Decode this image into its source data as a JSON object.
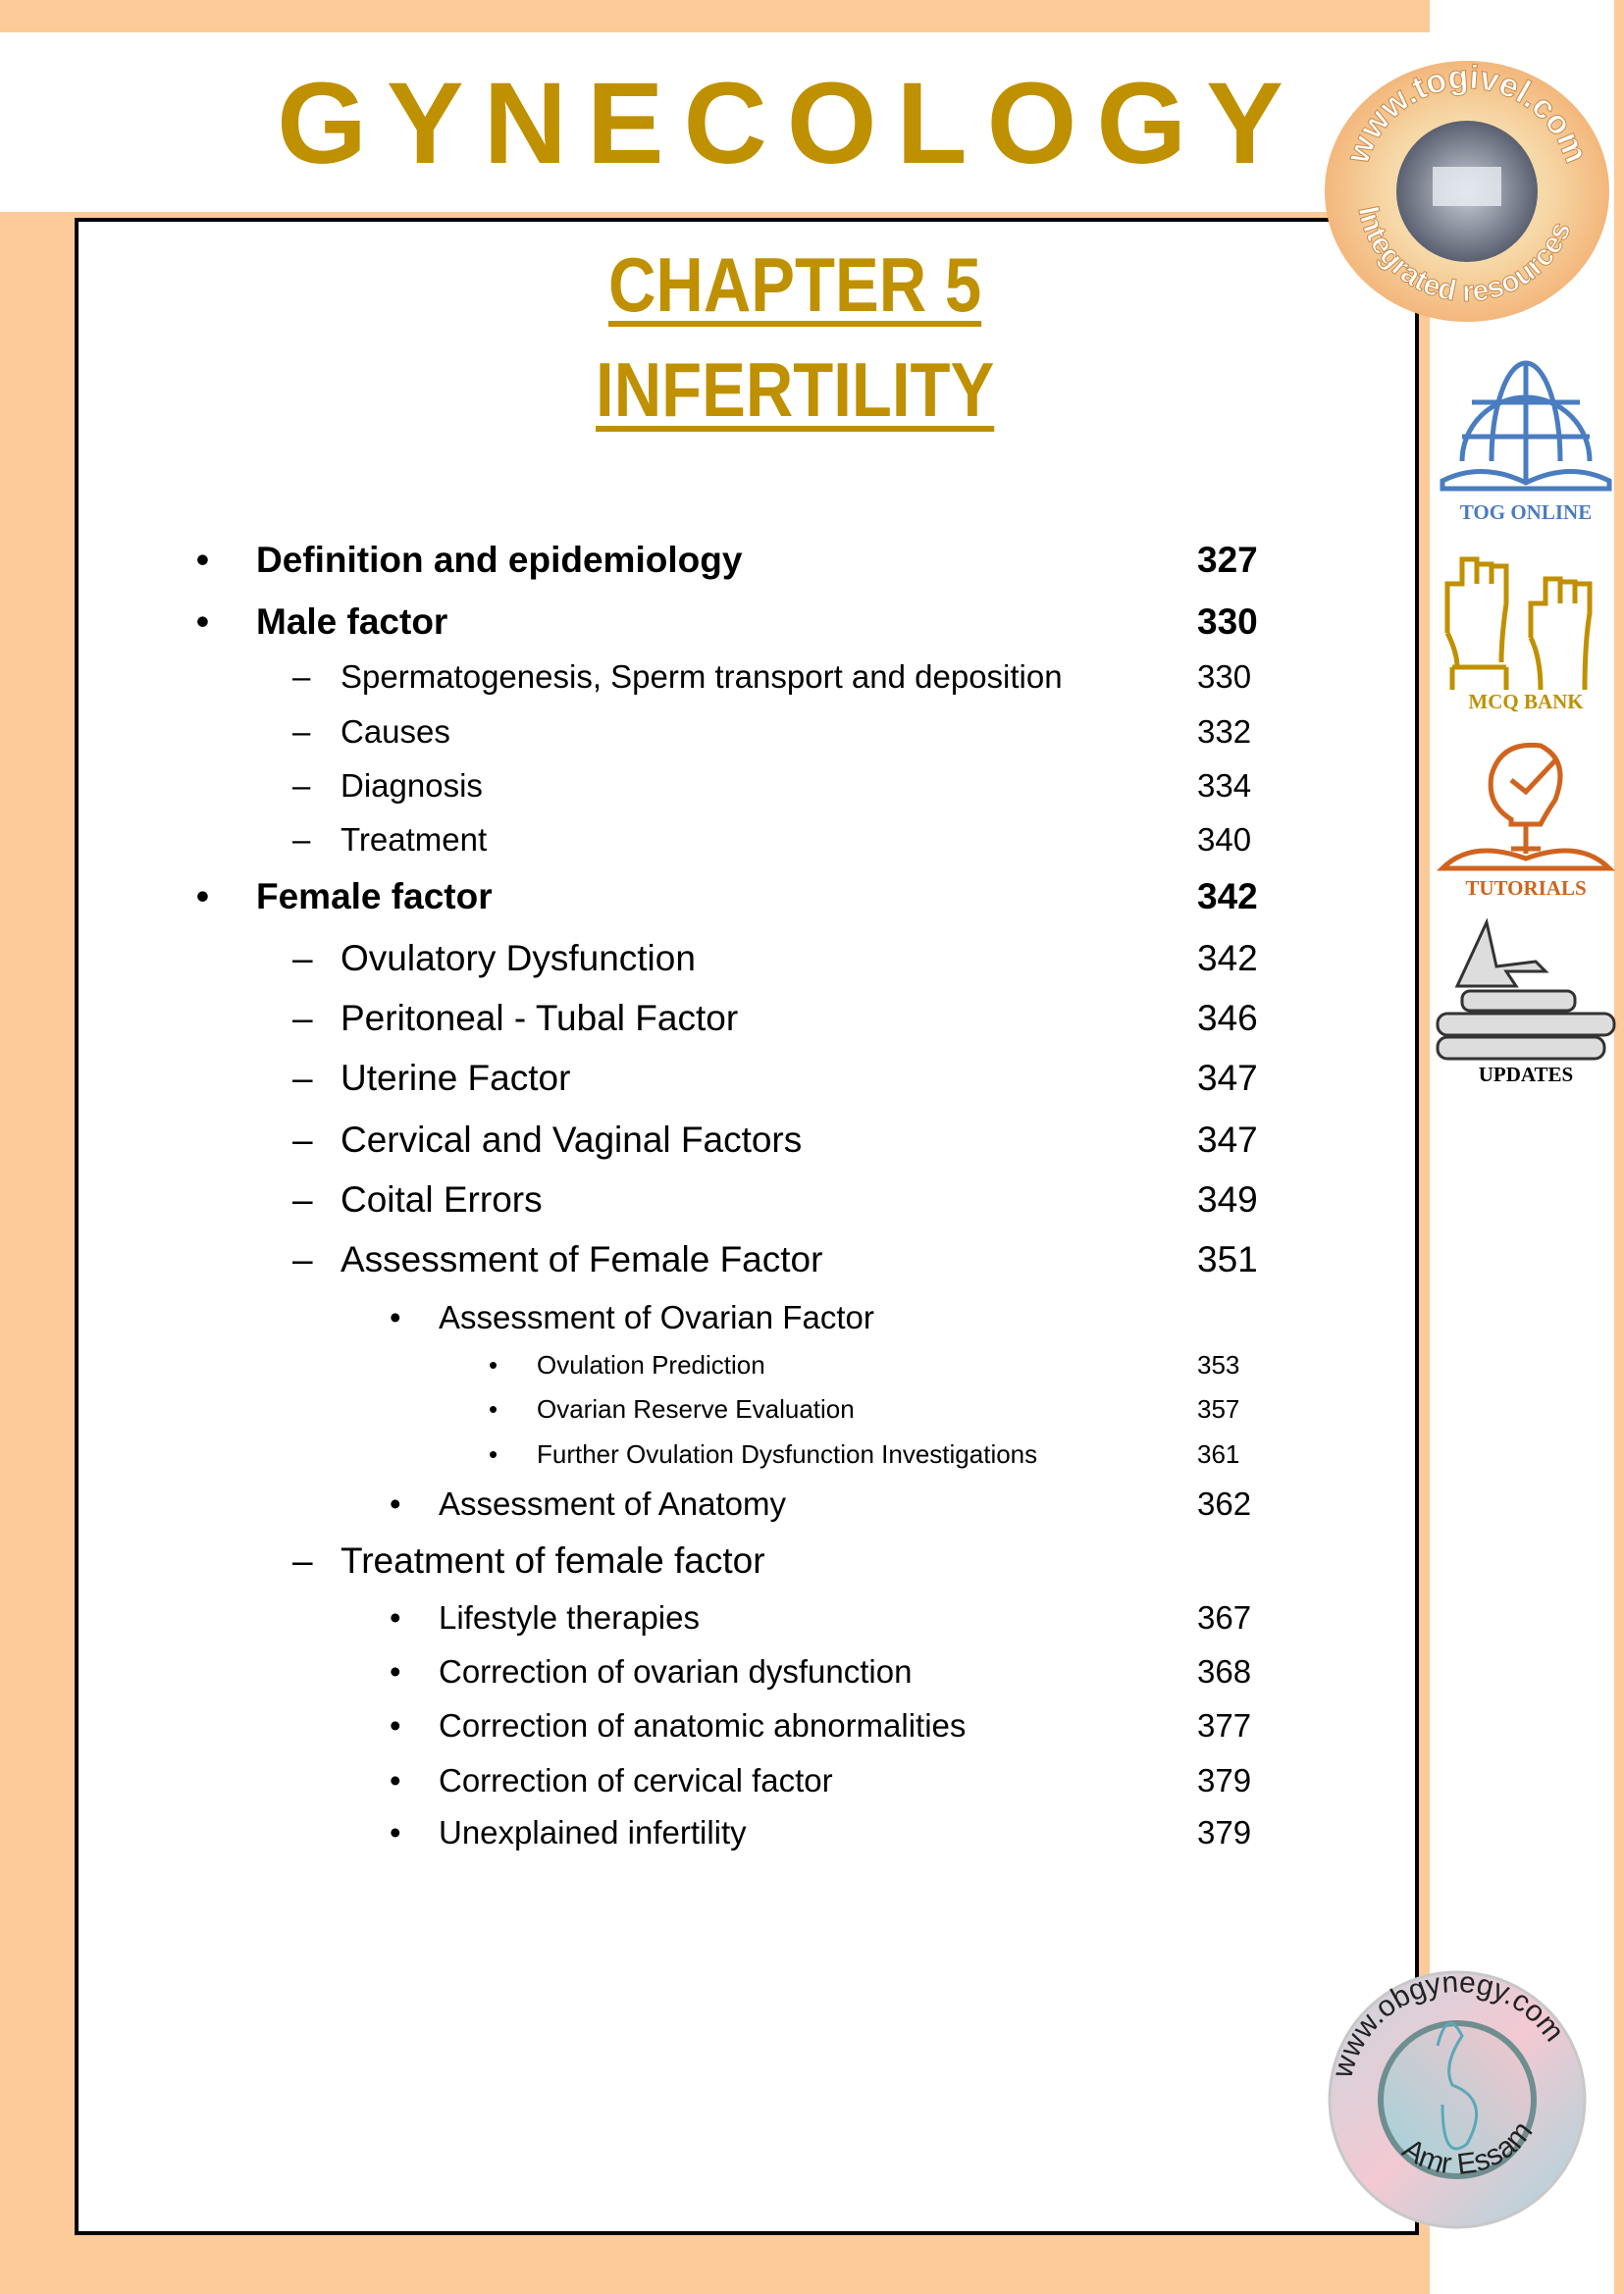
{
  "header": {
    "title": "GYNECOLOGY"
  },
  "chapter": {
    "number_label": "CHAPTER 5",
    "title": "INFERTILITY"
  },
  "toc": [
    {
      "level": 1,
      "marker": "•",
      "text": "Definition and epidemiology",
      "page": "327"
    },
    {
      "level": 1,
      "marker": "•",
      "text": "Male factor",
      "page": "330"
    },
    {
      "level": 2,
      "marker": "–",
      "text": "Spermatogenesis, Sperm transport and deposition",
      "page": "330"
    },
    {
      "level": 2,
      "marker": "–",
      "text": "Causes",
      "page": "332"
    },
    {
      "level": 2,
      "marker": "–",
      "text": "Diagnosis",
      "page": "334"
    },
    {
      "level": 2,
      "marker": "–",
      "text": "Treatment",
      "page": "340"
    },
    {
      "level": 1,
      "marker": "•",
      "text": "Female factor",
      "page": "342"
    },
    {
      "level": "2b",
      "marker": "–",
      "text": "Ovulatory Dysfunction",
      "page": "342"
    },
    {
      "level": "2b",
      "marker": "–",
      "text": "Peritoneal - Tubal Factor",
      "page": "346"
    },
    {
      "level": "2b",
      "marker": "–",
      "text": "Uterine Factor",
      "page": "347"
    },
    {
      "level": "2b",
      "marker": "–",
      "text": "Cervical and Vaginal Factors",
      "page": "347"
    },
    {
      "level": "2b",
      "marker": "–",
      "text": "Coital Errors",
      "page": "349"
    },
    {
      "level": "2b",
      "marker": "–",
      "text": "Assessment of Female Factor",
      "page": "351"
    },
    {
      "level": 3,
      "marker": "•",
      "text": "Assessment of Ovarian Factor",
      "page": ""
    },
    {
      "level": 4,
      "marker": "•",
      "text": "Ovulation Prediction",
      "page": "353"
    },
    {
      "level": 4,
      "marker": "•",
      "text": "Ovarian Reserve Evaluation",
      "page": "357"
    },
    {
      "level": 4,
      "marker": "•",
      "text": "Further Ovulation Dysfunction Investigations",
      "page": "361"
    },
    {
      "level": 3,
      "marker": "•",
      "text": "Assessment of Anatomy",
      "page": "362"
    },
    {
      "level": "2b",
      "marker": "–",
      "text": "Treatment of female factor",
      "page": ""
    },
    {
      "level": 3,
      "marker": "•",
      "text": "Lifestyle therapies",
      "page": "367"
    },
    {
      "level": 3,
      "marker": "•",
      "text": "Correction of ovarian dysfunction",
      "page": "368"
    },
    {
      "level": 3,
      "marker": "•",
      "text": "Correction of anatomic abnormalities",
      "page": "377"
    },
    {
      "level": 3,
      "marker": "•",
      "text": "Correction of cervical factor",
      "page": "379"
    },
    {
      "level": 3,
      "marker": "•",
      "text": "Unexplained infertility",
      "page": "379"
    }
  ],
  "sidebar": {
    "logo_top": {
      "url_text": "www.togivel.com",
      "ring_text": "Integrated resources"
    },
    "items": [
      {
        "label": "TOG ONLINE",
        "icon": "globe-book-icon",
        "color": "#4a7cc0"
      },
      {
        "label": "MCQ BANK",
        "icon": "raised-hands-icon",
        "color": "#c09000"
      },
      {
        "label": "TUTORIALS",
        "icon": "lightbulb-book-icon",
        "color": "#d0641e"
      },
      {
        "label": "UPDATES",
        "icon": "books-lightning-icon",
        "color": "#000000"
      }
    ],
    "logo_bottom": {
      "url_text": "www.obgynegy.com",
      "author": "Amr Essam"
    }
  },
  "colors": {
    "background": "#fdcb9a",
    "title": "#bf9000"
  }
}
